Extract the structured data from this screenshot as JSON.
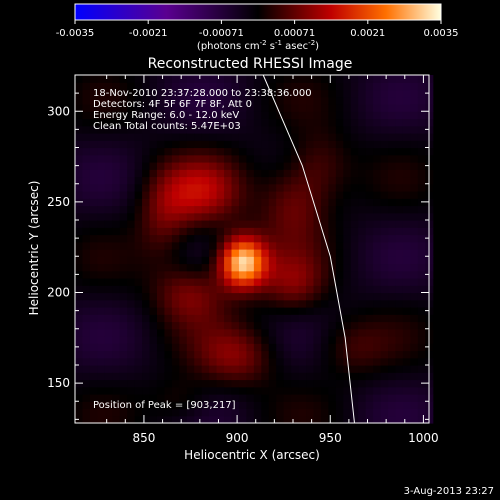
{
  "chart_data": {
    "type": "heatmap",
    "title": "Reconstructed RHESSI Image",
    "xlabel": "Heliocentric X (arcsec)",
    "ylabel": "Heliocentric Y (arcsec)",
    "xlim": [
      813,
      1003
    ],
    "ylim": [
      128,
      320
    ],
    "xticks": [
      850,
      900,
      950,
      1000
    ],
    "yticks": [
      150,
      200,
      250,
      300
    ],
    "colorbar": {
      "range": [
        -0.0035,
        0.0035
      ],
      "ticks": [
        "-0.0035",
        "-0.0021",
        "-0.00071",
        "0.00071",
        "0.0021",
        "0.0035"
      ],
      "unit_label": "(photons cm",
      "unit_exp1": "-2",
      "unit_mid": " s",
      "unit_exp2": "-1",
      "unit_mid2": " asec",
      "unit_exp3": "-2",
      "unit_end": ")"
    },
    "annotations": {
      "time": "18-Nov-2010 23:37:28.000 to 23:38:36.000",
      "detectors": "Detectors: 4F 5F 6F 7F 8F, Att 0",
      "energy": "Energy Range: 6.0 - 12.0 keV",
      "clean": "Clean     Total counts: 5.47E+03",
      "peak": "Position of Peak = [903,217]"
    },
    "peak": [
      903,
      217
    ],
    "limb_arc": [
      [
        914,
        320
      ],
      [
        935,
        270
      ],
      [
        950,
        220
      ],
      [
        958,
        175
      ],
      [
        963,
        128
      ]
    ],
    "sources": [
      {
        "x": 903,
        "y": 217,
        "amp": 1.0,
        "sx": 9,
        "sy": 10
      },
      {
        "x": 880,
        "y": 255,
        "amp": 0.38,
        "sx": 16,
        "sy": 14
      },
      {
        "x": 930,
        "y": 250,
        "amp": 0.3,
        "sx": 13,
        "sy": 16
      },
      {
        "x": 875,
        "y": 200,
        "amp": 0.32,
        "sx": 14,
        "sy": 12
      },
      {
        "x": 930,
        "y": 205,
        "amp": 0.28,
        "sx": 12,
        "sy": 12
      },
      {
        "x": 900,
        "y": 165,
        "amp": 0.3,
        "sx": 15,
        "sy": 12
      },
      {
        "x": 860,
        "y": 240,
        "amp": 0.22,
        "sx": 10,
        "sy": 18
      },
      {
        "x": 945,
        "y": 270,
        "amp": 0.22,
        "sx": 12,
        "sy": 14
      },
      {
        "x": 960,
        "y": 170,
        "amp": 0.18,
        "sx": 14,
        "sy": 12
      },
      {
        "x": 870,
        "y": 140,
        "amp": 0.16,
        "sx": 12,
        "sy": 10
      }
    ],
    "footer_date": "3-Aug-2013 23:27"
  }
}
